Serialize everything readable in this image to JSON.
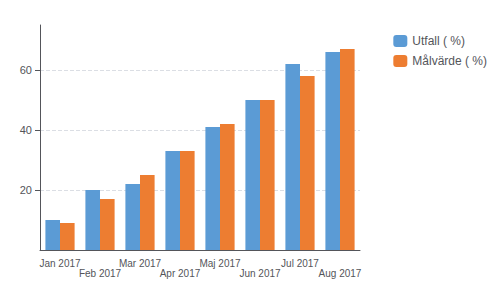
{
  "chart_data": {
    "type": "bar",
    "categories": [
      "Jan 2017",
      "Feb 2017",
      "Mar 2017",
      "Apr 2017",
      "Maj 2017",
      "Jun 2017",
      "Jul 2017",
      "Aug 2017"
    ],
    "series": [
      {
        "name": "Utfall ( %)",
        "color": "#5B9BD5",
        "values": [
          10,
          20,
          22,
          33,
          41,
          50,
          62,
          66
        ]
      },
      {
        "name": "Målvärde ( %)",
        "color": "#ED7D31",
        "values": [
          9,
          17,
          25,
          33,
          42,
          50,
          58,
          67
        ]
      }
    ],
    "ylim": [
      0,
      75
    ],
    "yticks": [
      20,
      40,
      60
    ],
    "grid": true,
    "legend": "right"
  }
}
